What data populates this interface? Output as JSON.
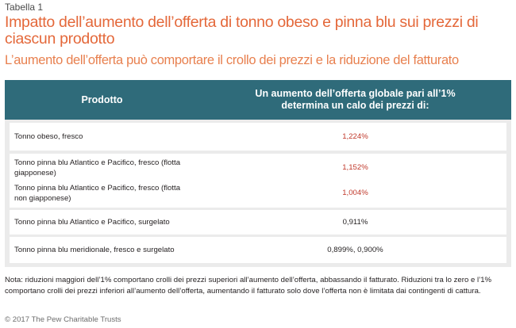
{
  "label": "Tabella 1",
  "title": "Impatto dell’aumento dell’offerta di tonno obeso e pinna blu sui prezzi di ciascun prodotto",
  "subtitle": "L’aumento dell’offerta può comportare il crollo dei prezzi e la riduzione del fatturato",
  "table": {
    "headers": {
      "product": "Prodotto",
      "effect": "Un aumento dell’offerta globale pari all’1% determina un calo dei prezzi di:"
    },
    "rows": [
      {
        "name": "Tonno obeso, fresco",
        "value": "1,224%",
        "highlight": true
      },
      {
        "name": "Tonno pinna blu Atlantico e Pacifico, fresco (flotta giapponese)",
        "value": "1,152%",
        "highlight": true
      },
      {
        "name": "Tonno pinna blu Atlantico e Pacifico, fresco (flotta non giapponese)",
        "value": "1,004%",
        "highlight": true
      },
      {
        "name": "Tonno pinna blu Atlantico e Pacifico, surgelato",
        "value": "0,911%",
        "highlight": false
      },
      {
        "name": "Tonno pinna blu meridionale, fresco e surgelato",
        "value": "0,899%, 0,900%",
        "highlight": false
      }
    ]
  },
  "note": "Nota: riduzioni maggiori dell’1% comportano crolli dei prezzi superiori all’aumento dell’offerta, abbassando il fatturato. Riduzioni tra lo zero e l’1% comportano crolli dei prezzi inferiori all’aumento dell’offerta, aumentando il fatturato solo dove l’offerta non è limitata dai contingenti di cattura.",
  "footer": "© 2017 The Pew Charitable Trusts",
  "colors": {
    "title": "#e4683a",
    "header_bg": "#2f6b7a",
    "highlight_value": "#c0392b",
    "table_bg": "#ebebeb"
  }
}
